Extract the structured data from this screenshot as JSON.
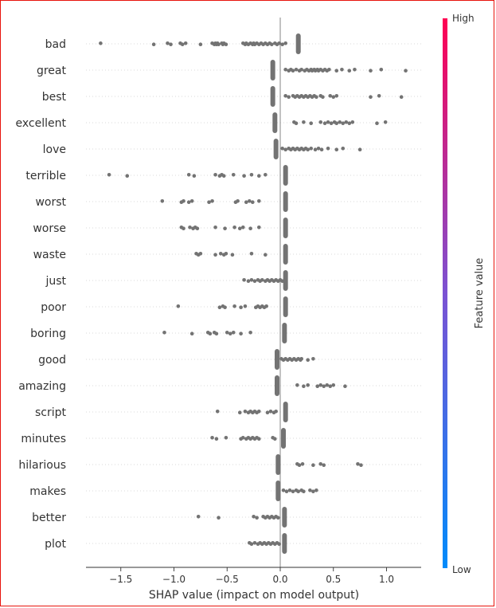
{
  "chart_data": {
    "type": "beeswarm",
    "title": "",
    "xlabel": "SHAP value (impact on model output)",
    "ylabel": "",
    "xlim": [
      -1.85,
      1.3
    ],
    "xticks": [
      -1.5,
      -1.0,
      -0.5,
      0.0,
      0.5,
      1.0
    ],
    "xtick_labels": [
      "−1.5",
      "−1.0",
      "−0.5",
      "0.0",
      "0.5",
      "1.0"
    ],
    "colorbar": {
      "label": "Feature value",
      "high_label": "High",
      "low_label": "Low",
      "high_color": "#ff0052",
      "low_color": "#008bfb"
    },
    "point_color": "#737373",
    "features": [
      {
        "name": "bad",
        "present": 0.17,
        "absent": [
          -1.69,
          -1.19,
          -1.06,
          -1.03,
          -0.94,
          -0.92,
          -0.89,
          -0.75,
          -0.64,
          -0.62,
          -0.61,
          -0.6,
          -0.59,
          -0.58,
          -0.55,
          -0.54,
          -0.53,
          -0.51,
          -0.35,
          -0.33,
          -0.32,
          -0.3,
          -0.28,
          -0.26,
          -0.25,
          -0.24,
          -0.22,
          -0.2,
          -0.18,
          -0.16,
          -0.14,
          -0.12,
          -0.1,
          -0.08,
          -0.05,
          -0.03,
          -0.01,
          0.02,
          0.05
        ]
      },
      {
        "name": "great",
        "present": -0.07,
        "absent": [
          0.05,
          0.08,
          0.1,
          0.12,
          0.15,
          0.18,
          0.2,
          0.23,
          0.25,
          0.27,
          0.29,
          0.3,
          0.32,
          0.33,
          0.35,
          0.36,
          0.38,
          0.4,
          0.42,
          0.44,
          0.46,
          0.53,
          0.58,
          0.65,
          0.7,
          0.85,
          0.95,
          1.18
        ]
      },
      {
        "name": "best",
        "present": -0.07,
        "absent": [
          0.05,
          0.08,
          0.12,
          0.14,
          0.16,
          0.18,
          0.2,
          0.22,
          0.24,
          0.26,
          0.28,
          0.3,
          0.32,
          0.34,
          0.38,
          0.4,
          0.47,
          0.5,
          0.53,
          0.85,
          0.93,
          1.14
        ]
      },
      {
        "name": "excellent",
        "present": -0.05,
        "absent": [
          0.13,
          0.15,
          0.22,
          0.29,
          0.38,
          0.42,
          0.45,
          0.48,
          0.51,
          0.53,
          0.56,
          0.59,
          0.62,
          0.65,
          0.68,
          0.91,
          0.99
        ]
      },
      {
        "name": "love",
        "present": -0.04,
        "absent": [
          0.02,
          0.05,
          0.08,
          0.1,
          0.12,
          0.14,
          0.16,
          0.18,
          0.2,
          0.22,
          0.24,
          0.26,
          0.29,
          0.33,
          0.36,
          0.39,
          0.45,
          0.53,
          0.59,
          0.75
        ]
      },
      {
        "name": "terrible",
        "present": 0.05,
        "absent": [
          -1.61,
          -1.44,
          -0.86,
          -0.81,
          -0.61,
          -0.57,
          -0.55,
          -0.53,
          -0.44,
          -0.34,
          -0.27,
          -0.2,
          -0.14
        ]
      },
      {
        "name": "worst",
        "present": 0.05,
        "absent": [
          -1.11,
          -0.93,
          -0.91,
          -0.86,
          -0.83,
          -0.67,
          -0.64,
          -0.42,
          -0.4,
          -0.32,
          -0.29,
          -0.26,
          -0.2
        ]
      },
      {
        "name": "worse",
        "present": 0.05,
        "absent": [
          -0.93,
          -0.91,
          -0.85,
          -0.82,
          -0.8,
          -0.78,
          -0.61,
          -0.52,
          -0.43,
          -0.38,
          -0.35,
          -0.28,
          -0.2
        ]
      },
      {
        "name": "waste",
        "present": 0.05,
        "absent": [
          -0.79,
          -0.77,
          -0.75,
          -0.61,
          -0.56,
          -0.53,
          -0.51,
          -0.45,
          -0.27,
          -0.14
        ]
      },
      {
        "name": "just",
        "present": 0.05,
        "absent": [
          -0.34,
          -0.3,
          -0.27,
          -0.24,
          -0.21,
          -0.19,
          -0.17,
          -0.14,
          -0.12,
          -0.1,
          -0.08,
          -0.06,
          -0.04,
          -0.02,
          0.0,
          0.02
        ]
      },
      {
        "name": "poor",
        "present": 0.05,
        "absent": [
          -0.96,
          -0.57,
          -0.54,
          -0.52,
          -0.43,
          -0.37,
          -0.33,
          -0.23,
          -0.21,
          -0.19,
          -0.17,
          -0.15,
          -0.13
        ]
      },
      {
        "name": "boring",
        "present": 0.04,
        "absent": [
          -1.09,
          -0.83,
          -0.68,
          -0.66,
          -0.62,
          -0.6,
          -0.5,
          -0.47,
          -0.44,
          -0.37,
          -0.28
        ]
      },
      {
        "name": "good",
        "present": -0.03,
        "absent": [
          0.01,
          0.03,
          0.05,
          0.07,
          0.09,
          0.11,
          0.13,
          0.15,
          0.17,
          0.19,
          0.2,
          0.26,
          0.31
        ]
      },
      {
        "name": "amazing",
        "present": -0.03,
        "absent": [
          0.16,
          0.22,
          0.26,
          0.35,
          0.38,
          0.41,
          0.44,
          0.47,
          0.5,
          0.61
        ]
      },
      {
        "name": "script",
        "present": 0.05,
        "absent": [
          -0.59,
          -0.38,
          -0.33,
          -0.3,
          -0.28,
          -0.26,
          -0.24,
          -0.22,
          -0.2,
          -0.12,
          -0.09,
          -0.06,
          -0.04
        ]
      },
      {
        "name": "minutes",
        "present": 0.03,
        "absent": [
          -0.64,
          -0.6,
          -0.51,
          -0.37,
          -0.35,
          -0.32,
          -0.3,
          -0.28,
          -0.26,
          -0.24,
          -0.22,
          -0.2,
          -0.07,
          -0.05
        ]
      },
      {
        "name": "hilarious",
        "present": -0.02,
        "absent": [
          0.16,
          0.18,
          0.21,
          0.31,
          0.38,
          0.41,
          0.73,
          0.76
        ]
      },
      {
        "name": "makes",
        "present": -0.02,
        "absent": [
          0.03,
          0.06,
          0.09,
          0.12,
          0.15,
          0.17,
          0.2,
          0.22,
          0.28,
          0.31,
          0.34
        ]
      },
      {
        "name": "better",
        "present": 0.04,
        "absent": [
          -0.77,
          -0.58,
          -0.25,
          -0.22,
          -0.16,
          -0.14,
          -0.12,
          -0.1,
          -0.08,
          -0.06,
          -0.04,
          -0.02
        ]
      },
      {
        "name": "plot",
        "present": 0.04,
        "absent": [
          -0.29,
          -0.27,
          -0.24,
          -0.21,
          -0.19,
          -0.17,
          -0.15,
          -0.13,
          -0.11,
          -0.09,
          -0.07,
          -0.05,
          -0.03,
          -0.01
        ]
      }
    ]
  }
}
